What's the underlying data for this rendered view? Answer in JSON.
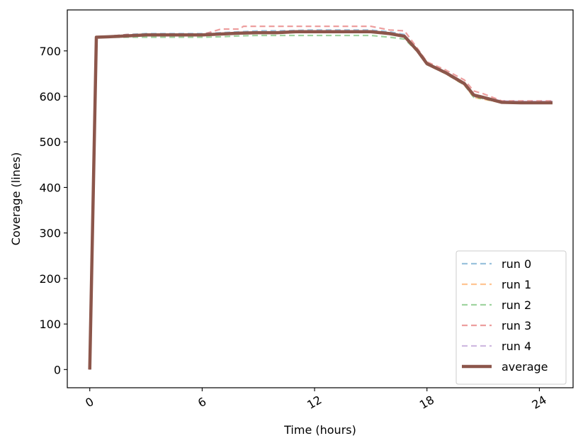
{
  "chart_data": {
    "type": "line",
    "title": "",
    "xlabel": "Time (hours)",
    "ylabel": "Coverage (lines)",
    "xlim": [
      -1.2,
      25.8
    ],
    "ylim": [
      -40,
      790
    ],
    "xticks": [
      0,
      6,
      12,
      18,
      24
    ],
    "xtick_labels": [
      "0",
      "6",
      "12",
      "18",
      "24"
    ],
    "xtick_rotation": -30,
    "yticks": [
      0,
      100,
      200,
      300,
      400,
      500,
      600,
      700
    ],
    "ytick_labels": [
      "0",
      "100",
      "200",
      "300",
      "400",
      "500",
      "600",
      "700"
    ],
    "grid": false,
    "legend_position": "lower right",
    "series": [
      {
        "name": "run 0",
        "color": "#1f77b4",
        "style": "dashed",
        "x": [
          0,
          0.35,
          1,
          2,
          3,
          4,
          5,
          6,
          7,
          8,
          9,
          10,
          11,
          12,
          13,
          14,
          15,
          16,
          16.8,
          17.5,
          18,
          19,
          20,
          20.5,
          21,
          22,
          23,
          24,
          24.7
        ],
        "y": [
          0,
          730,
          732,
          736,
          738,
          738,
          738,
          738,
          740,
          742,
          744,
          744,
          745,
          746,
          746,
          746,
          746,
          742,
          736,
          700,
          672,
          652,
          628,
          600,
          596,
          588,
          587,
          587,
          587
        ]
      },
      {
        "name": "run 1",
        "color": "#ff7f0e",
        "style": "dashed",
        "x": [
          0,
          0.35,
          1,
          2,
          3,
          4,
          5,
          6,
          7,
          8,
          9,
          10,
          11,
          12,
          13,
          14,
          15,
          16,
          16.8,
          17.5,
          18,
          19,
          20,
          20.5,
          21,
          22,
          23,
          24,
          24.7
        ],
        "y": [
          0,
          730,
          732,
          735,
          735,
          735,
          735,
          735,
          738,
          740,
          740,
          740,
          742,
          742,
          742,
          742,
          742,
          738,
          732,
          698,
          670,
          650,
          625,
          598,
          594,
          586,
          585,
          585,
          585
        ]
      },
      {
        "name": "run 2",
        "color": "#2ca02c",
        "style": "dashed",
        "x": [
          0,
          0.35,
          1,
          2,
          3,
          4,
          5,
          6,
          7,
          8,
          9,
          10,
          11,
          12,
          13,
          14,
          15,
          16,
          16.8,
          17.5,
          18,
          19,
          20,
          20.5,
          21,
          22,
          23,
          24,
          24.7
        ],
        "y": [
          0,
          730,
          730,
          730,
          730,
          730,
          730,
          730,
          731,
          733,
          734,
          734,
          734,
          734,
          734,
          734,
          734,
          730,
          726,
          698,
          670,
          650,
          625,
          598,
          595,
          586,
          585,
          585,
          585
        ]
      },
      {
        "name": "run 3",
        "color": "#d62728",
        "style": "dashed",
        "x": [
          0,
          0.35,
          1,
          2,
          3,
          4,
          5,
          6,
          7,
          8,
          8.2,
          9,
          10,
          11,
          12,
          13,
          14,
          15,
          16,
          16.8,
          17.5,
          18,
          19,
          20,
          20.5,
          21,
          22,
          23,
          24,
          24.7
        ],
        "y": [
          0,
          730,
          732,
          736,
          736,
          736,
          736,
          736,
          748,
          748,
          754,
          754,
          754,
          754,
          754,
          754,
          754,
          754,
          746,
          744,
          705,
          676,
          658,
          636,
          612,
          606,
          590,
          590,
          590,
          590
        ]
      },
      {
        "name": "run 4",
        "color": "#9467bd",
        "style": "dashed",
        "x": [
          0,
          0.35,
          1,
          2,
          3,
          4,
          5,
          6,
          7,
          8,
          9,
          10,
          11,
          12,
          13,
          14,
          15,
          16,
          16.8,
          17.5,
          18,
          19,
          20,
          20.5,
          21,
          22,
          23,
          24,
          24.7
        ],
        "y": [
          0,
          730,
          732,
          735,
          736,
          736,
          736,
          736,
          738,
          740,
          741,
          741,
          743,
          744,
          744,
          744,
          744,
          740,
          734,
          700,
          672,
          654,
          630,
          604,
          598,
          590,
          589,
          589,
          589
        ]
      },
      {
        "name": "average",
        "color": "#8c564b",
        "style": "solid",
        "x": [
          0,
          0.35,
          1,
          2,
          3,
          4,
          5,
          6,
          7,
          8,
          9,
          10,
          11,
          12,
          13,
          14,
          15,
          16,
          16.8,
          17.5,
          18,
          19,
          20,
          20.5,
          21,
          22,
          23,
          24,
          24.7
        ],
        "y": [
          0,
          730,
          731,
          733,
          735,
          735,
          735,
          735,
          737,
          739,
          740,
          740,
          742,
          742,
          742,
          742,
          742,
          738,
          732,
          700,
          672,
          652,
          628,
          603,
          598,
          587,
          586,
          586,
          586
        ]
      }
    ]
  }
}
